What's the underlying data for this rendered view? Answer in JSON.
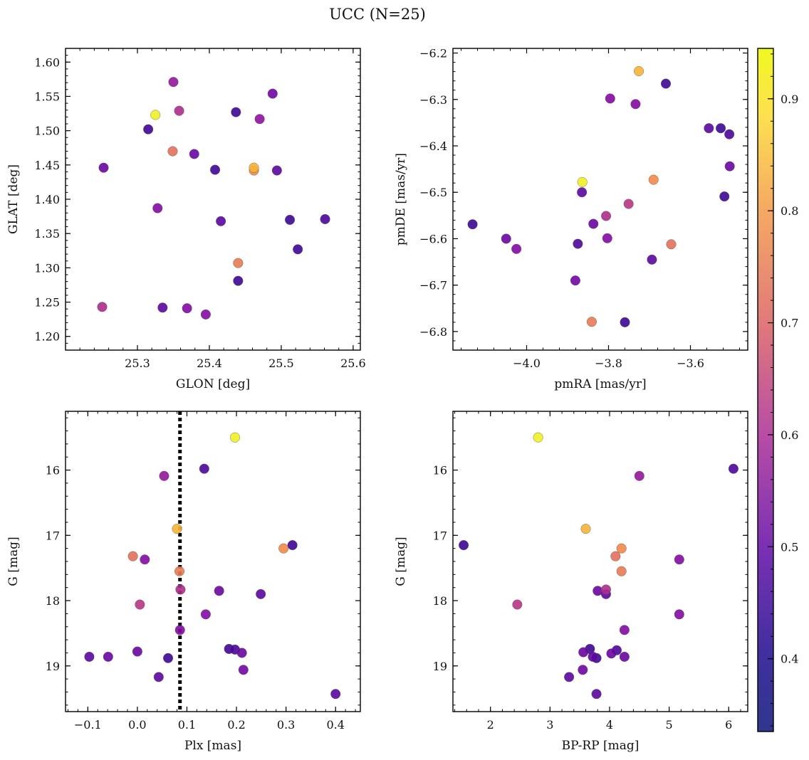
{
  "figure": {
    "title": "UCC (N=25)",
    "colormap": "plasma",
    "colorbar": {
      "range": [
        0.335,
        0.945
      ],
      "ticks": [
        0.4,
        0.5,
        0.6,
        0.7,
        0.8,
        0.9
      ]
    }
  },
  "chart_data": [
    {
      "type": "scatter",
      "xlabel": "GLON [deg]",
      "ylabel": "GLAT [deg]",
      "xlim": [
        25.2,
        25.61
      ],
      "ylim": [
        1.18,
        1.62
      ],
      "xticks": [
        25.3,
        25.4,
        25.5,
        25.6
      ],
      "xticklabels": [
        "25.3",
        "25.4",
        "25.5",
        "25.6"
      ],
      "yticks": [
        1.2,
        1.25,
        1.3,
        1.35,
        1.4,
        1.45,
        1.5,
        1.55,
        1.6
      ],
      "yticklabels": [
        "1.20",
        "1.25",
        "1.30",
        "1.35",
        "1.40",
        "1.45",
        "1.50",
        "1.55",
        "1.60"
      ],
      "points": [
        {
          "x": 25.253,
          "y": 1.446,
          "c": 0.46
        },
        {
          "x": 25.35,
          "y": 1.571,
          "c": 0.53
        },
        {
          "x": 25.325,
          "y": 1.523,
          "c": 0.93
        },
        {
          "x": 25.315,
          "y": 1.502,
          "c": 0.4
        },
        {
          "x": 25.358,
          "y": 1.529,
          "c": 0.58
        },
        {
          "x": 25.437,
          "y": 1.527,
          "c": 0.4
        },
        {
          "x": 25.47,
          "y": 1.517,
          "c": 0.52
        },
        {
          "x": 25.488,
          "y": 1.554,
          "c": 0.47
        },
        {
          "x": 25.349,
          "y": 1.47,
          "c": 0.72
        },
        {
          "x": 25.379,
          "y": 1.466,
          "c": 0.46
        },
        {
          "x": 25.408,
          "y": 1.443,
          "c": 0.4
        },
        {
          "x": 25.462,
          "y": 1.446,
          "c": 0.84
        },
        {
          "x": 25.462,
          "y": 1.442,
          "c": 0.77
        },
        {
          "x": 25.494,
          "y": 1.442,
          "c": 0.44
        },
        {
          "x": 25.328,
          "y": 1.387,
          "c": 0.5
        },
        {
          "x": 25.416,
          "y": 1.368,
          "c": 0.44
        },
        {
          "x": 25.512,
          "y": 1.37,
          "c": 0.4
        },
        {
          "x": 25.561,
          "y": 1.371,
          "c": 0.42
        },
        {
          "x": 25.523,
          "y": 1.327,
          "c": 0.4
        },
        {
          "x": 25.44,
          "y": 1.307,
          "c": 0.74
        },
        {
          "x": 25.44,
          "y": 1.281,
          "c": 0.4
        },
        {
          "x": 25.251,
          "y": 1.243,
          "c": 0.58
        },
        {
          "x": 25.335,
          "y": 1.242,
          "c": 0.44
        },
        {
          "x": 25.369,
          "y": 1.241,
          "c": 0.5
        },
        {
          "x": 25.395,
          "y": 1.232,
          "c": 0.5
        }
      ]
    },
    {
      "type": "scatter",
      "xlabel": "pmRA [mas/yr]",
      "ylabel": "pmDE [mas/yr]",
      "xlim": [
        -4.18,
        -3.46
      ],
      "ylim": [
        -6.84,
        -6.19
      ],
      "xticks": [
        -4.0,
        -3.8,
        -3.6
      ],
      "xticklabels": [
        "−4.0",
        "−3.8",
        "−3.6"
      ],
      "yticks": [
        -6.8,
        -6.7,
        -6.6,
        -6.5,
        -6.4,
        -6.3,
        -6.2
      ],
      "yticklabels": [
        "−6.8",
        "−6.7",
        "−6.6",
        "−6.5",
        "−6.4",
        "−6.3",
        "−6.2"
      ],
      "points": [
        {
          "x": -3.726,
          "y": -6.239,
          "c": 0.84
        },
        {
          "x": -3.66,
          "y": -6.266,
          "c": 0.4
        },
        {
          "x": -3.796,
          "y": -6.298,
          "c": 0.5
        },
        {
          "x": -3.734,
          "y": -6.31,
          "c": 0.5
        },
        {
          "x": -3.555,
          "y": -6.362,
          "c": 0.44
        },
        {
          "x": -3.526,
          "y": -6.362,
          "c": 0.4
        },
        {
          "x": -3.505,
          "y": -6.375,
          "c": 0.42
        },
        {
          "x": -3.504,
          "y": -6.444,
          "c": 0.46
        },
        {
          "x": -3.864,
          "y": -6.478,
          "c": 0.93
        },
        {
          "x": -3.69,
          "y": -6.473,
          "c": 0.77
        },
        {
          "x": -3.865,
          "y": -6.5,
          "c": 0.44
        },
        {
          "x": -3.517,
          "y": -6.509,
          "c": 0.4
        },
        {
          "x": -3.751,
          "y": -6.525,
          "c": 0.6
        },
        {
          "x": -3.806,
          "y": -6.551,
          "c": 0.58
        },
        {
          "x": -3.837,
          "y": -6.568,
          "c": 0.46
        },
        {
          "x": -4.132,
          "y": -6.569,
          "c": 0.4
        },
        {
          "x": -4.05,
          "y": -6.6,
          "c": 0.46
        },
        {
          "x": -3.803,
          "y": -6.599,
          "c": 0.5
        },
        {
          "x": -4.025,
          "y": -6.622,
          "c": 0.5
        },
        {
          "x": -3.875,
          "y": -6.611,
          "c": 0.42
        },
        {
          "x": -3.647,
          "y": -6.612,
          "c": 0.72
        },
        {
          "x": -3.694,
          "y": -6.645,
          "c": 0.44
        },
        {
          "x": -3.881,
          "y": -6.69,
          "c": 0.47
        },
        {
          "x": -3.841,
          "y": -6.779,
          "c": 0.74
        },
        {
          "x": -3.76,
          "y": -6.78,
          "c": 0.4
        }
      ]
    },
    {
      "type": "scatter",
      "xlabel": "Plx [mas]",
      "ylabel": "G [mag]",
      "xlim": [
        -0.145,
        0.45
      ],
      "ylim": [
        19.7,
        15.1
      ],
      "yinverted": true,
      "vline": 0.086,
      "xticks": [
        -0.1,
        0.0,
        0.1,
        0.2,
        0.3,
        0.4
      ],
      "xticklabels": [
        "−0.1",
        "0.0",
        "0.1",
        "0.2",
        "0.3",
        "0.4"
      ],
      "yticks": [
        16,
        17,
        18,
        19
      ],
      "yticklabels": [
        "16",
        "17",
        "18",
        "19"
      ],
      "points": [
        {
          "x": 0.197,
          "y": 15.5,
          "c": 0.93
        },
        {
          "x": 0.135,
          "y": 15.98,
          "c": 0.42
        },
        {
          "x": 0.054,
          "y": 16.09,
          "c": 0.53
        },
        {
          "x": 0.08,
          "y": 16.9,
          "c": 0.84
        },
        {
          "x": 0.313,
          "y": 17.15,
          "c": 0.4
        },
        {
          "x": 0.295,
          "y": 17.2,
          "c": 0.77
        },
        {
          "x": -0.009,
          "y": 17.32,
          "c": 0.72
        },
        {
          "x": 0.015,
          "y": 17.37,
          "c": 0.5
        },
        {
          "x": 0.085,
          "y": 17.55,
          "c": 0.74
        },
        {
          "x": 0.087,
          "y": 17.83,
          "c": 0.58
        },
        {
          "x": 0.165,
          "y": 17.85,
          "c": 0.46
        },
        {
          "x": 0.249,
          "y": 17.9,
          "c": 0.44
        },
        {
          "x": 0.005,
          "y": 18.06,
          "c": 0.6
        },
        {
          "x": 0.138,
          "y": 18.21,
          "c": 0.5
        },
        {
          "x": 0.086,
          "y": 18.45,
          "c": 0.5
        },
        {
          "x": 0.185,
          "y": 18.74,
          "c": 0.4
        },
        {
          "x": 0.197,
          "y": 18.75,
          "c": 0.42
        },
        {
          "x": 0.211,
          "y": 18.8,
          "c": 0.46
        },
        {
          "x": 0.0,
          "y": 18.78,
          "c": 0.46
        },
        {
          "x": -0.097,
          "y": 18.86,
          "c": 0.44
        },
        {
          "x": -0.059,
          "y": 18.86,
          "c": 0.46
        },
        {
          "x": 0.062,
          "y": 18.88,
          "c": 0.4
        },
        {
          "x": 0.214,
          "y": 19.06,
          "c": 0.47
        },
        {
          "x": 0.043,
          "y": 19.17,
          "c": 0.44
        },
        {
          "x": 0.4,
          "y": 19.43,
          "c": 0.44
        }
      ]
    },
    {
      "type": "scatter",
      "xlabel": "BP-RP [mag]",
      "ylabel": "G [mag]",
      "xlim": [
        1.37,
        6.32
      ],
      "ylim": [
        19.7,
        15.1
      ],
      "yinverted": true,
      "xticks": [
        2,
        3,
        4,
        5,
        6
      ],
      "xticklabels": [
        "2",
        "3",
        "4",
        "5",
        "6"
      ],
      "yticks": [
        16,
        17,
        18,
        19
      ],
      "yticklabels": [
        "16",
        "17",
        "18",
        "19"
      ],
      "points": [
        {
          "x": 2.8,
          "y": 15.5,
          "c": 0.93
        },
        {
          "x": 6.08,
          "y": 15.98,
          "c": 0.42
        },
        {
          "x": 4.5,
          "y": 16.09,
          "c": 0.53
        },
        {
          "x": 3.6,
          "y": 16.9,
          "c": 0.84
        },
        {
          "x": 1.55,
          "y": 17.15,
          "c": 0.4
        },
        {
          "x": 4.2,
          "y": 17.2,
          "c": 0.77
        },
        {
          "x": 4.1,
          "y": 17.32,
          "c": 0.72
        },
        {
          "x": 5.17,
          "y": 17.37,
          "c": 0.5
        },
        {
          "x": 4.2,
          "y": 17.55,
          "c": 0.74
        },
        {
          "x": 3.94,
          "y": 17.83,
          "c": 0.58
        },
        {
          "x": 3.8,
          "y": 17.85,
          "c": 0.46
        },
        {
          "x": 3.94,
          "y": 17.9,
          "c": 0.44
        },
        {
          "x": 2.45,
          "y": 18.06,
          "c": 0.6
        },
        {
          "x": 5.17,
          "y": 18.21,
          "c": 0.5
        },
        {
          "x": 4.25,
          "y": 18.45,
          "c": 0.5
        },
        {
          "x": 3.67,
          "y": 18.74,
          "c": 0.4
        },
        {
          "x": 4.12,
          "y": 18.76,
          "c": 0.42
        },
        {
          "x": 3.56,
          "y": 18.79,
          "c": 0.46
        },
        {
          "x": 4.03,
          "y": 18.81,
          "c": 0.46
        },
        {
          "x": 3.72,
          "y": 18.86,
          "c": 0.44
        },
        {
          "x": 4.25,
          "y": 18.86,
          "c": 0.46
        },
        {
          "x": 3.78,
          "y": 18.88,
          "c": 0.4
        },
        {
          "x": 3.55,
          "y": 19.06,
          "c": 0.47
        },
        {
          "x": 3.32,
          "y": 19.17,
          "c": 0.44
        },
        {
          "x": 3.78,
          "y": 19.43,
          "c": 0.44
        }
      ]
    }
  ]
}
